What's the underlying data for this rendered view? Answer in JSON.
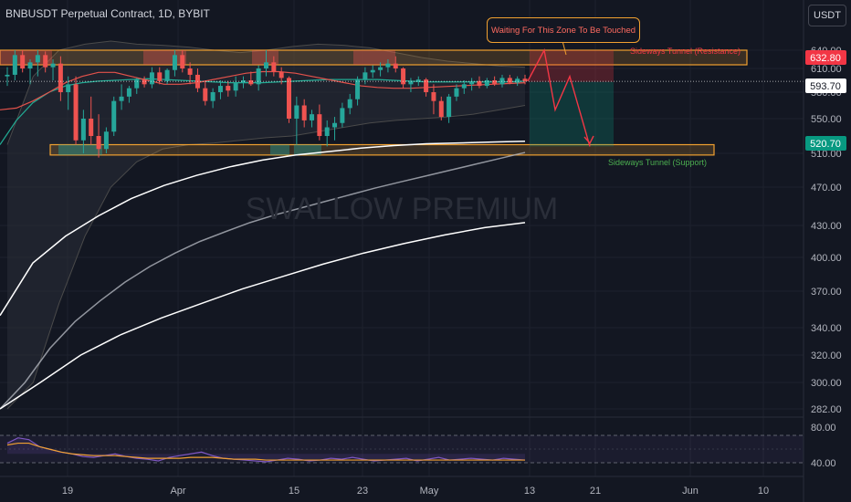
{
  "header": {
    "title": "BNBUSDT Perpetual Contract, 1D, BYBIT",
    "unit_button": "USDT"
  },
  "watermark": "SWALLOW PREMIUM",
  "annotations": {
    "callout": "Waiting For This Zone To Be Touched",
    "resistance_label": "Sideways Tunnel (Resistance)",
    "support_label": "Sideways Tunnel (Support)"
  },
  "price_badges": {
    "resistance": "632.80",
    "current": "593.70",
    "support": "520.70"
  },
  "colors": {
    "up": "#26a69a",
    "down": "#ef5350",
    "zone_border": "#f0a030",
    "resistance_text": "#f23645",
    "support_text": "#4caf50",
    "ema_green": "#22ab94",
    "ema_red": "#e3524b",
    "ma_white": "#ffffff",
    "ma_grey": "#b2b5be",
    "rsi": "#7e57c2",
    "rsi_ma": "#f0a030",
    "badge_red": "#f23645",
    "badge_green": "#089981"
  },
  "chart_data": {
    "type": "candlestick",
    "instrument": "BNBUSDT Perpetual Contract",
    "interval": "1D",
    "exchange": "BYBIT",
    "y_ticks": [
      640.0,
      610.0,
      580.0,
      550.0,
      510.0,
      470.0,
      430.0,
      400.0,
      370.0,
      340.0,
      320.0,
      300.0,
      282.0
    ],
    "x_ticks": [
      "19",
      "Apr",
      "15",
      "23",
      "May",
      "13",
      "21",
      "Jun",
      "10"
    ],
    "rsi_ticks": [
      "80.00",
      "40.00"
    ],
    "ohlc": [
      [
        600,
        612,
        588,
        602
      ],
      [
        602,
        640,
        595,
        632
      ],
      [
        632,
        640,
        605,
        610
      ],
      [
        610,
        625,
        590,
        620
      ],
      [
        620,
        640,
        600,
        632
      ],
      [
        632,
        638,
        605,
        612
      ],
      [
        612,
        625,
        595,
        618
      ],
      [
        618,
        630,
        570,
        580
      ],
      [
        580,
        600,
        560,
        590
      ],
      [
        590,
        600,
        520,
        525
      ],
      [
        525,
        560,
        510,
        550
      ],
      [
        550,
        575,
        520,
        530
      ],
      [
        530,
        555,
        505,
        515
      ],
      [
        515,
        540,
        510,
        535
      ],
      [
        535,
        575,
        530,
        570
      ],
      [
        570,
        590,
        560,
        575
      ],
      [
        575,
        588,
        568,
        585
      ],
      [
        585,
        598,
        578,
        596
      ],
      [
        596,
        600,
        586,
        590
      ],
      [
        590,
        612,
        585,
        605
      ],
      [
        605,
        612,
        590,
        594
      ],
      [
        594,
        610,
        590,
        608
      ],
      [
        608,
        640,
        600,
        632
      ],
      [
        632,
        640,
        605,
        610
      ],
      [
        610,
        620,
        590,
        602
      ],
      [
        602,
        610,
        580,
        585
      ],
      [
        585,
        595,
        565,
        570
      ],
      [
        570,
        585,
        562,
        580
      ],
      [
        580,
        595,
        572,
        588
      ],
      [
        588,
        594,
        575,
        582
      ],
      [
        582,
        600,
        575,
        592
      ],
      [
        592,
        600,
        585,
        595
      ],
      [
        595,
        606,
        588,
        590
      ],
      [
        590,
        615,
        582,
        610
      ],
      [
        610,
        640,
        600,
        620
      ],
      [
        620,
        630,
        600,
        606
      ],
      [
        606,
        612,
        590,
        598
      ],
      [
        598,
        600,
        545,
        550
      ],
      [
        550,
        575,
        520,
        565
      ],
      [
        565,
        572,
        540,
        548
      ],
      [
        548,
        560,
        540,
        555
      ],
      [
        555,
        566,
        525,
        530
      ],
      [
        530,
        548,
        518,
        540
      ],
      [
        540,
        552,
        525,
        545
      ],
      [
        545,
        568,
        540,
        562
      ],
      [
        562,
        578,
        555,
        572
      ],
      [
        572,
        600,
        565,
        596
      ],
      [
        596,
        612,
        590,
        605
      ],
      [
        605,
        615,
        598,
        608
      ],
      [
        608,
        620,
        600,
        612
      ],
      [
        612,
        625,
        605,
        618
      ],
      [
        618,
        630,
        605,
        610
      ],
      [
        610,
        612,
        585,
        590
      ],
      [
        590,
        598,
        580,
        594
      ],
      [
        594,
        600,
        588,
        596
      ],
      [
        596,
        598,
        575,
        580
      ],
      [
        580,
        590,
        555,
        570
      ],
      [
        570,
        575,
        548,
        552
      ],
      [
        552,
        578,
        545,
        575
      ],
      [
        575,
        590,
        570,
        585
      ],
      [
        585,
        595,
        578,
        590
      ],
      [
        590,
        598,
        582,
        594
      ],
      [
        594,
        600,
        585,
        588
      ],
      [
        588,
        598,
        585,
        595
      ],
      [
        595,
        600,
        588,
        590
      ],
      [
        590,
        602,
        586,
        598
      ],
      [
        598,
        602,
        590,
        592
      ],
      [
        592,
        600,
        588,
        597
      ],
      [
        597,
        602,
        590,
        594
      ]
    ],
    "series": [
      {
        "name": "",
        "values": [
          520,
          548,
          568,
          580,
          588,
          592,
          594,
          595,
          596,
          597,
          596,
          595,
          594,
          593,
          592,
          592,
          592,
          593,
          594,
          595,
          596,
          596,
          596,
          596,
          595,
          594,
          593,
          593,
          593,
          593,
          593,
          593,
          594
        ]
      },
      {
        "name": "",
        "values": [
          560,
          562,
          570,
          580,
          592,
          600,
          605,
          605,
          600,
          595,
          590,
          590,
          592,
          596,
          600,
          604,
          606,
          606,
          604,
          600,
          596,
          592,
          588,
          586,
          585,
          585,
          586,
          587,
          588,
          589,
          590,
          591,
          592
        ]
      },
      {
        "name": "",
        "values": [
          282,
          300,
          325,
          345,
          362,
          378,
          392,
          404,
          415,
          424,
          433,
          441,
          448,
          455,
          462,
          469,
          476,
          483,
          490,
          497,
          504,
          511
        ]
      },
      {
        "name": "",
        "values": [
          350,
          395,
          420,
          440,
          458,
          472,
          484,
          494,
          502,
          508,
          512,
          516,
          519,
          521,
          522,
          523,
          524
        ]
      },
      {
        "name": "",
        "values": [
          282,
          300,
          320,
          335,
          348,
          360,
          372,
          383,
          394,
          404,
          413,
          421,
          428,
          433
        ]
      }
    ],
    "projection": {
      "points": [
        [
          0,
          594
        ],
        [
          1,
          640
        ],
        [
          2,
          562
        ],
        [
          3,
          600
        ],
        [
          4,
          518
        ]
      ]
    },
    "rsi": {
      "values": [
        62,
        68,
        66,
        58,
        55,
        52,
        50,
        47,
        46,
        48,
        50,
        47,
        45,
        44,
        42,
        46,
        48,
        50,
        52,
        48,
        45,
        44,
        43,
        42,
        41,
        43,
        45,
        44,
        42,
        43,
        45,
        44,
        46,
        44,
        42,
        43,
        44,
        45,
        42,
        44,
        46,
        43,
        44,
        45,
        44,
        43,
        45,
        44,
        43
      ],
      "ma": [
        60,
        62,
        62,
        58,
        55,
        52,
        50,
        49,
        48,
        48,
        48,
        47,
        46,
        45,
        45,
        45,
        45,
        46,
        46,
        46,
        45,
        44,
        44,
        44,
        43,
        43,
        43,
        43,
        43,
        43,
        43,
        43,
        43,
        43,
        43,
        43,
        43,
        43,
        43,
        43,
        43,
        43,
        43,
        43,
        43,
        43,
        43,
        43,
        43
      ]
    }
  }
}
